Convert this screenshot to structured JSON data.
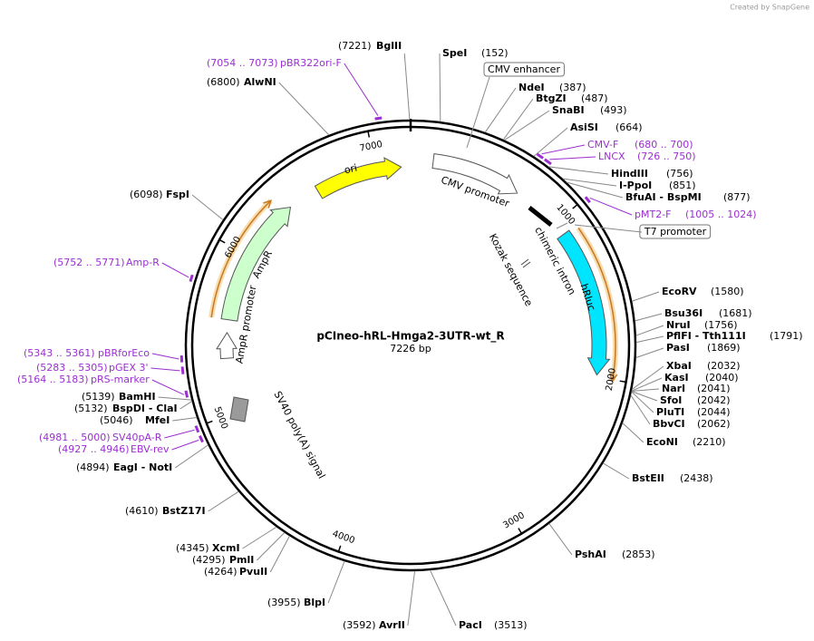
{
  "header": {
    "credit": "Created by SnapGene"
  },
  "map": {
    "name": "pCIneo-hRL-Hmga2-3UTR-wt_R",
    "length": {
      "value": 7226,
      "label": "7226 bp"
    },
    "ticks": [
      1000,
      2000,
      3000,
      4000,
      5000,
      6000,
      7000
    ]
  },
  "enzymes": [
    {
      "name": "BglII",
      "position": {
        "value": 7221,
        "label": "(7221)"
      }
    },
    {
      "name": "SpeI",
      "position": {
        "value": 152,
        "label": "(152)"
      }
    },
    {
      "name": "NdeI",
      "position": {
        "value": 387,
        "label": "(387)"
      }
    },
    {
      "name": "BtgZI",
      "position": {
        "value": 487,
        "label": "(487)"
      }
    },
    {
      "name": "SnaBI",
      "position": {
        "value": 493,
        "label": "(493)"
      }
    },
    {
      "name": "AsiSI",
      "position": {
        "value": 664,
        "label": "(664)"
      }
    },
    {
      "name": "HindIII",
      "position": {
        "value": 756,
        "label": "(756)"
      }
    },
    {
      "name": "I-PpoI",
      "position": {
        "value": 851,
        "label": "(851)"
      }
    },
    {
      "name": "BfuAI - BspMI",
      "position": {
        "value": 877,
        "label": "(877)"
      }
    },
    {
      "name": "EcoRV",
      "position": {
        "value": 1580,
        "label": "(1580)"
      }
    },
    {
      "name": "Bsu36I",
      "position": {
        "value": 1681,
        "label": "(1681)"
      }
    },
    {
      "name": "NruI",
      "position": {
        "value": 1756,
        "label": "(1756)"
      }
    },
    {
      "name": "PflFI - Tth111I",
      "position": {
        "value": 1791,
        "label": "(1791)"
      }
    },
    {
      "name": "PasI",
      "position": {
        "value": 1869,
        "label": "(1869)"
      }
    },
    {
      "name": "XbaI",
      "position": {
        "value": 2032,
        "label": "(2032)"
      }
    },
    {
      "name": "KasI",
      "position": {
        "value": 2040,
        "label": "(2040)"
      }
    },
    {
      "name": "NarI",
      "position": {
        "value": 2041,
        "label": "(2041)"
      }
    },
    {
      "name": "SfoI",
      "position": {
        "value": 2042,
        "label": "(2042)"
      }
    },
    {
      "name": "PluTI",
      "position": {
        "value": 2044,
        "label": "(2044)"
      }
    },
    {
      "name": "BbvCI",
      "position": {
        "value": 2062,
        "label": "(2062)"
      }
    },
    {
      "name": "EcoNI",
      "position": {
        "value": 2210,
        "label": "(2210)"
      }
    },
    {
      "name": "BstEII",
      "position": {
        "value": 2438,
        "label": "(2438)"
      }
    },
    {
      "name": "PshAI",
      "position": {
        "value": 2853,
        "label": "(2853)"
      }
    },
    {
      "name": "PacI",
      "position": {
        "value": 3513,
        "label": "(3513)"
      }
    },
    {
      "name": "AvrII",
      "position": {
        "value": 3592,
        "label": "(3592)"
      }
    },
    {
      "name": "BlpI",
      "position": {
        "value": 3955,
        "label": "(3955)"
      }
    },
    {
      "name": "PvuII",
      "position": {
        "value": 4264,
        "label": "(4264)"
      }
    },
    {
      "name": "PmlI",
      "position": {
        "value": 4295,
        "label": "(4295)"
      }
    },
    {
      "name": "XcmI",
      "position": {
        "value": 4345,
        "label": "(4345)"
      }
    },
    {
      "name": "BstZ17I",
      "position": {
        "value": 4610,
        "label": "(4610)"
      }
    },
    {
      "name": "EagI - NotI",
      "position": {
        "value": 4894,
        "label": "(4894)"
      }
    },
    {
      "name": "MfeI",
      "position": {
        "value": 5046,
        "label": "(5046)"
      }
    },
    {
      "name": "BspDI - ClaI",
      "position": {
        "value": 5132,
        "label": "(5132)"
      }
    },
    {
      "name": "BamHI",
      "position": {
        "value": 5139,
        "label": "(5139)"
      }
    },
    {
      "name": "FspI",
      "position": {
        "value": 6098,
        "label": "(6098)"
      }
    },
    {
      "name": "AlwNI",
      "position": {
        "value": 6800,
        "label": "(6800)"
      }
    }
  ],
  "primers": [
    {
      "name": "pBR322ori-F",
      "range": {
        "start": 7054,
        "end": 7073,
        "label": "(7054 .. 7073)"
      }
    },
    {
      "name": "CMV-F",
      "range": {
        "start": 680,
        "end": 700,
        "label": "(680 .. 700)"
      }
    },
    {
      "name": "LNCX",
      "range": {
        "start": 726,
        "end": 750,
        "label": "(726 .. 750)"
      }
    },
    {
      "name": "pMT2-F",
      "range": {
        "start": 1005,
        "end": 1024,
        "label": "(1005 .. 1024)"
      }
    },
    {
      "name": "Amp-R",
      "range": {
        "start": 5752,
        "end": 5771,
        "label": "(5752 .. 5771)"
      }
    },
    {
      "name": "pBRforEco",
      "range": {
        "start": 5343,
        "end": 5361,
        "label": "(5343 .. 5361)"
      }
    },
    {
      "name": "pGEX 3'",
      "range": {
        "start": 5283,
        "end": 5305,
        "label": "(5283 .. 5305)"
      }
    },
    {
      "name": "pRS-marker",
      "range": {
        "start": 5164,
        "end": 5183,
        "label": "(5164 .. 5183)"
      }
    },
    {
      "name": "SV40pA-R",
      "range": {
        "start": 4981,
        "end": 5000,
        "label": "(4981 .. 5000)"
      }
    },
    {
      "name": "EBV-rev",
      "range": {
        "start": 4927,
        "end": 4946,
        "label": "(4927 .. 4946)"
      }
    }
  ],
  "features": [
    {
      "name": "CMV enhancer"
    },
    {
      "name": "CMV promoter"
    },
    {
      "name": "T7 promoter"
    },
    {
      "name": "chimeric intron"
    },
    {
      "name": "Kozak sequence"
    },
    {
      "name": "hRluc"
    },
    {
      "name": "ori"
    },
    {
      "name": "AmpR"
    },
    {
      "name": "AmpR promoter"
    },
    {
      "name": "SV40 poly(A) signal"
    }
  ]
}
